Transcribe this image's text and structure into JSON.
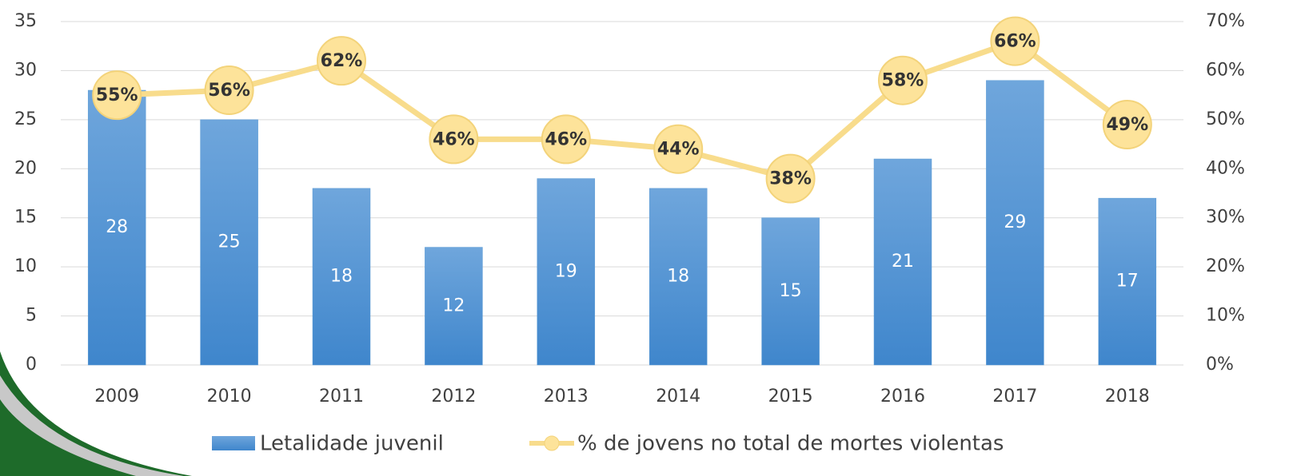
{
  "chart_data": {
    "type": "combo",
    "categories": [
      "2009",
      "2010",
      "2011",
      "2012",
      "2013",
      "2014",
      "2015",
      "2016",
      "2017",
      "2018"
    ],
    "series": [
      {
        "name": "Letalidade juvenil",
        "type": "bar",
        "color": "#5b9bd5",
        "values": [
          28,
          25,
          18,
          12,
          19,
          18,
          15,
          21,
          29,
          17
        ]
      },
      {
        "name": "% de jovens no total de mortes violentas",
        "type": "line",
        "axis": "y2",
        "color": "#f8dc8c",
        "values": [
          55,
          56,
          62,
          46,
          46,
          44,
          38,
          58,
          66,
          49
        ],
        "value_labels": [
          "55%",
          "56%",
          "62%",
          "46%",
          "46%",
          "44%",
          "38%",
          "58%",
          "66%",
          "49%"
        ]
      }
    ],
    "ylim": [
      0,
      35
    ],
    "yticks": [
      0,
      5,
      10,
      15,
      20,
      25,
      30,
      35
    ],
    "y2lim": [
      0,
      70
    ],
    "y2ticks": [
      {
        "value": 0,
        "label": "0%"
      },
      {
        "value": 10,
        "label": "10%"
      },
      {
        "value": 20,
        "label": "20%"
      },
      {
        "value": 30,
        "label": "30%"
      },
      {
        "value": 40,
        "label": "40%"
      },
      {
        "value": 50,
        "label": "50%"
      },
      {
        "value": 60,
        "label": "60%"
      },
      {
        "value": 70,
        "label": "70%"
      }
    ],
    "grid": true,
    "legend": "bottom"
  }
}
